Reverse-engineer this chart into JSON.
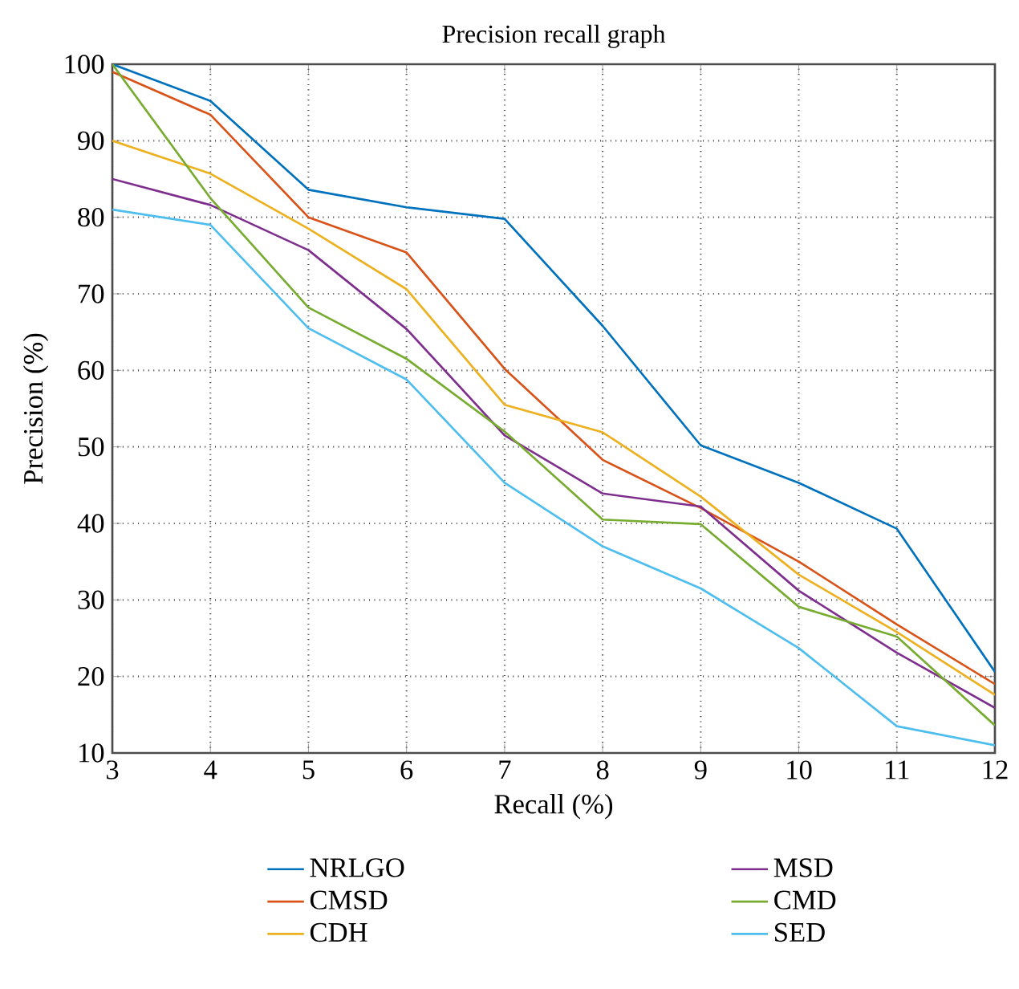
{
  "chart_data": {
    "type": "line",
    "title": "Precision recall graph",
    "xlabel": "Recall (%)",
    "ylabel": "Precision (%)",
    "x": [
      3,
      4,
      5,
      6,
      7,
      8,
      9,
      10,
      11,
      12
    ],
    "series": [
      {
        "name": "NRLGO",
        "color": "#0072bd",
        "values": [
          100,
          95.2,
          83.6,
          81.3,
          79.8,
          65.8,
          50.2,
          45.3,
          39.3,
          20.6
        ]
      },
      {
        "name": "CMSD",
        "color": "#d95319",
        "values": [
          99,
          93.4,
          80,
          75.4,
          60.2,
          48.3,
          42,
          35,
          26.8,
          19
        ]
      },
      {
        "name": "CDH",
        "color": "#edb120",
        "values": [
          90,
          85.7,
          78.5,
          70.6,
          55.5,
          51.9,
          43.5,
          33.3,
          25.8,
          17.6
        ]
      },
      {
        "name": "MSD",
        "color": "#7e2f8e",
        "values": [
          85,
          81.6,
          75.7,
          65.4,
          51.5,
          43.9,
          42.2,
          31.2,
          23.1,
          15.9
        ]
      },
      {
        "name": "CMD",
        "color": "#77ac30",
        "values": [
          100,
          82.5,
          68.2,
          61.5,
          52,
          40.5,
          39.9,
          29.1,
          25.2,
          13.6
        ]
      },
      {
        "name": "SED",
        "color": "#4dbeee",
        "values": [
          81,
          79,
          65.5,
          58.8,
          45.3,
          37,
          31.5,
          23.7,
          13.5,
          11
        ]
      }
    ],
    "xlim": [
      3,
      12
    ],
    "ylim": [
      10,
      100
    ],
    "xticks": [
      3,
      4,
      5,
      6,
      7,
      8,
      9,
      10,
      11,
      12
    ],
    "yticks": [
      10,
      20,
      30,
      40,
      50,
      60,
      70,
      80,
      90,
      100
    ],
    "grid": true,
    "legend": "bottom",
    "line_style": "solid"
  }
}
